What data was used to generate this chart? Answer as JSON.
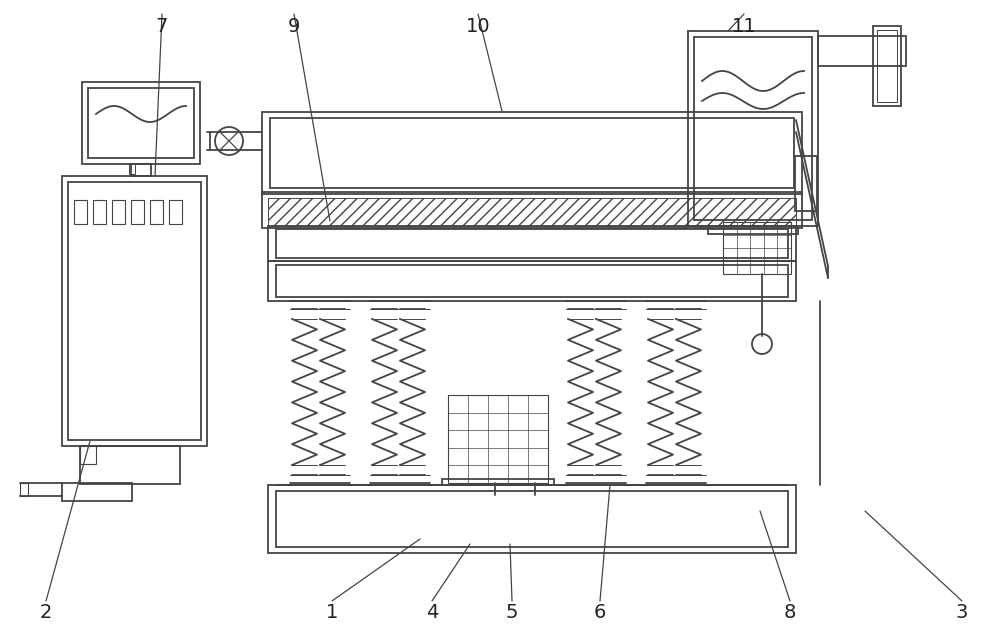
{
  "bg_color": "#ffffff",
  "lc": "#444444",
  "lw": 1.3,
  "fig_w": 10.0,
  "fig_h": 6.41,
  "label_fs": 14,
  "label_color": "#222222"
}
